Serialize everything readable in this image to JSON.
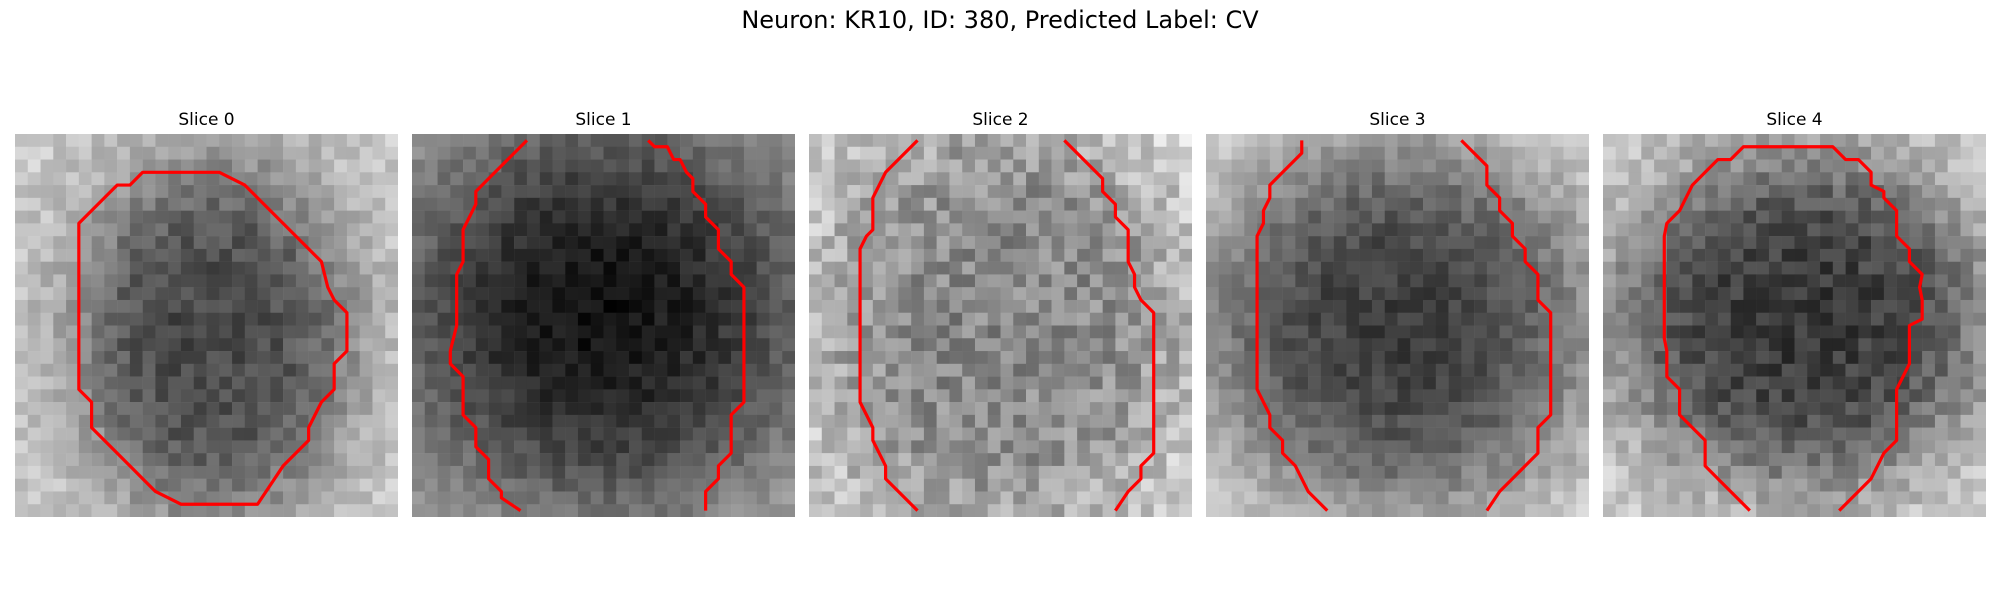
{
  "figure": {
    "title": "Neuron: KR10, ID: 380, Predicted Label: CV"
  },
  "panels": [
    {
      "title": "Slice 0",
      "style": "light-bg-dark-round-blob",
      "contour_color": "#ff0000"
    },
    {
      "title": "Slice 1",
      "style": "very-dark-large-blob",
      "contour_color": "#ff0000"
    },
    {
      "title": "Slice 2",
      "style": "mid-gray-textured",
      "contour_color": "#ff0000"
    },
    {
      "title": "Slice 3",
      "style": "dark-blob-light-edges",
      "contour_color": "#ff0000"
    },
    {
      "title": "Slice 4",
      "style": "dark-blob-light-corners",
      "contour_color": "#ff0000"
    }
  ]
}
